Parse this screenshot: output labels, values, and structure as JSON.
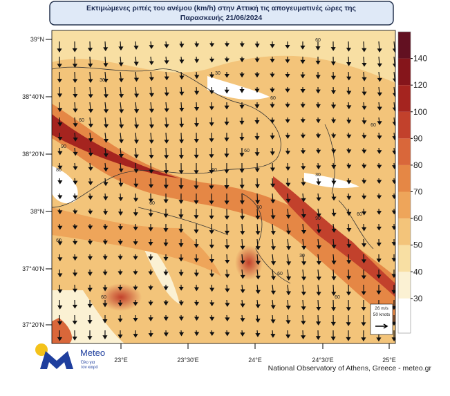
{
  "header": {
    "title_lines": [
      "Εκτιμώμενες ριπές του ανέμου (km/h) στην Αττική τις απογευματινές ώρες της",
      "Παρασκευής 21/06/2024"
    ]
  },
  "map": {
    "lat_labels": [
      "39°N",
      "38°40'N",
      "38°20'N",
      "38°N",
      "37°40'N",
      "37°20'N"
    ],
    "lon_labels": [
      "23°E",
      "23°30'E",
      "24°E",
      "24°30'E",
      "25°E"
    ],
    "contour_labels": [
      "60",
      "30",
      "30",
      "60",
      "90",
      "60",
      "80",
      "60",
      "60",
      "30",
      "90",
      "60",
      "60",
      "60",
      "60",
      "30",
      "60",
      "60",
      "60",
      "60"
    ],
    "vector_legend": [
      "26 m/s",
      "50 knots"
    ]
  },
  "colorbar": {
    "levels": [
      30,
      40,
      50,
      60,
      70,
      80,
      90,
      100,
      120,
      140
    ],
    "colors": [
      "#ffffff",
      "#fbf1d3",
      "#f8dfa3",
      "#f3c47a",
      "#eea55a",
      "#e58745",
      "#d9673a",
      "#c2412c",
      "#a5241f",
      "#85151b",
      "#621021"
    ]
  },
  "footer": {
    "credit": "National Observatory of Athens, Greece - meteo.gr",
    "logo": "Meteo",
    "slogan": [
      "Όλο για",
      "τον καιρό"
    ]
  }
}
